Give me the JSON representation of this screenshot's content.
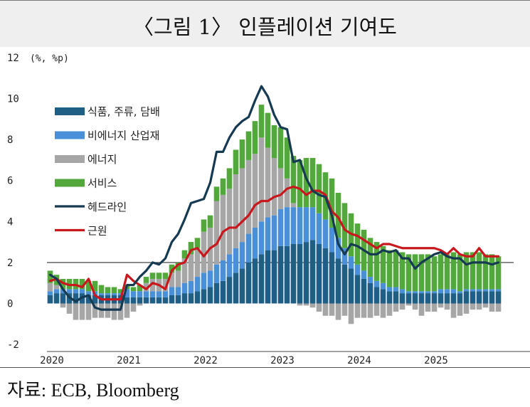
{
  "title": "〈그림 1〉 인플레이션 기여도",
  "source": "자료: ECB, Bloomberg",
  "chart_data": {
    "type": "bar",
    "stacked": true,
    "unit_label": "(%, %p)",
    "ylim": [
      -2,
      12
    ],
    "yticks": [
      "12",
      "10",
      "8",
      "6",
      "4",
      "2",
      "0",
      "-2"
    ],
    "ytick_values": [
      12,
      10,
      8,
      6,
      4,
      2,
      0,
      -2
    ],
    "x_start": "2020-01",
    "x_labels": [
      "2020",
      "2021",
      "2022",
      "2023",
      "2024",
      "2025"
    ],
    "reference_line": 2,
    "legend_position": "top-left",
    "colors": {
      "food": "#1f5f86",
      "core_goods": "#4a90d9",
      "energy": "#a6a6a6",
      "services": "#52a83a",
      "headline": "#163a52",
      "core": "#c8181e"
    },
    "legend": {
      "food": "식품, 주류, 담배",
      "core_goods": "비에너지 산업재",
      "energy": "에너지",
      "services": "서비스",
      "headline": "헤드라인",
      "core": "근원"
    },
    "series": {
      "food": [
        0.4,
        0.5,
        0.5,
        0.5,
        0.5,
        0.5,
        0.4,
        0.4,
        0.4,
        0.4,
        0.4,
        0.4,
        0.3,
        0.3,
        0.3,
        0.3,
        0.3,
        0.3,
        0.3,
        0.4,
        0.4,
        0.5,
        0.5,
        0.6,
        0.7,
        0.8,
        1.0,
        1.1,
        1.3,
        1.5,
        1.7,
        2.0,
        2.2,
        2.4,
        2.6,
        2.6,
        2.8,
        2.8,
        2.9,
        2.9,
        3.0,
        3.1,
        2.9,
        2.7,
        2.5,
        2.2,
        1.9,
        1.7,
        1.4,
        1.2,
        1.0,
        0.8,
        0.7,
        0.6,
        0.6,
        0.5,
        0.5,
        0.5,
        0.5,
        0.5,
        0.5,
        0.5,
        0.5,
        0.5,
        0.5,
        0.6,
        0.6,
        0.6,
        0.6,
        0.6,
        0.6
      ],
      "core_goods": [
        0.2,
        0.2,
        0.2,
        0.2,
        0.2,
        0.2,
        0.2,
        0.2,
        0.1,
        0.1,
        0.1,
        0.1,
        0.4,
        0.3,
        0.3,
        0.3,
        0.3,
        0.3,
        0.3,
        0.4,
        0.4,
        0.5,
        0.6,
        0.7,
        0.8,
        0.8,
        0.9,
        1.0,
        1.1,
        1.2,
        1.3,
        1.4,
        1.5,
        1.6,
        1.6,
        1.7,
        1.8,
        1.9,
        1.8,
        1.8,
        1.7,
        1.6,
        1.5,
        1.4,
        1.2,
        1.0,
        0.8,
        0.6,
        0.5,
        0.4,
        0.3,
        0.3,
        0.3,
        0.2,
        0.2,
        0.2,
        0.1,
        0.1,
        0.1,
        0.1,
        0.1,
        0.2,
        0.2,
        0.2,
        0.1,
        0.1,
        0.1,
        0.1,
        0.1,
        0.1,
        0.1
      ],
      "energy": [
        0.4,
        0.2,
        -0.2,
        -0.5,
        -0.8,
        -0.8,
        -0.8,
        -0.7,
        -0.7,
        -0.7,
        -0.8,
        -0.8,
        -0.7,
        -0.4,
        -0.1,
        0.4,
        0.6,
        0.6,
        0.6,
        0.7,
        0.8,
        1.2,
        1.3,
        1.4,
        2.0,
        2.1,
        3.1,
        3.2,
        3.2,
        3.6,
        3.6,
        3.6,
        3.6,
        4.1,
        3.4,
        2.8,
        2.0,
        1.4,
        0.2,
        -0.1,
        -0.1,
        -0.2,
        -0.4,
        -0.6,
        -0.6,
        -0.8,
        -0.6,
        -1.0,
        -0.7,
        -0.7,
        -0.7,
        -0.6,
        -0.7,
        -0.6,
        -0.4,
        -0.3,
        -0.1,
        -0.3,
        -0.6,
        -0.4,
        -0.4,
        -0.2,
        -0.3,
        -0.7,
        -0.6,
        -0.5,
        -0.3,
        -0.3,
        -0.2,
        -0.4,
        -0.4
      ],
      "services": [
        0.6,
        0.5,
        0.5,
        0.5,
        0.5,
        0.5,
        0.5,
        0.5,
        0.4,
        0.3,
        0.3,
        0.2,
        0.2,
        0.2,
        0.3,
        0.3,
        0.3,
        0.3,
        0.3,
        0.4,
        0.4,
        0.4,
        0.6,
        0.5,
        0.6,
        0.6,
        0.7,
        0.8,
        1.0,
        1.2,
        1.4,
        1.4,
        1.6,
        1.6,
        1.7,
        1.6,
        2.0,
        2.0,
        2.3,
        2.3,
        2.4,
        2.4,
        2.4,
        2.3,
        2.4,
        2.2,
        2.2,
        2.1,
        2.0,
        2.0,
        1.9,
        1.9,
        1.8,
        1.8,
        1.8,
        1.8,
        1.8,
        1.8,
        1.8,
        1.8,
        1.7,
        1.7,
        1.7,
        1.8,
        1.8,
        1.8,
        1.8,
        1.8,
        1.7,
        1.7,
        1.6
      ],
      "headline": [
        1.4,
        1.2,
        0.7,
        0.3,
        0.1,
        0.3,
        0.4,
        -0.2,
        -0.3,
        -0.3,
        -0.3,
        -0.3,
        0.9,
        0.9,
        1.3,
        1.6,
        2.0,
        1.9,
        2.2,
        3.0,
        3.4,
        4.1,
        4.9,
        5.0,
        5.1,
        5.9,
        7.4,
        7.4,
        8.1,
        8.6,
        8.9,
        9.1,
        9.9,
        10.6,
        10.1,
        9.2,
        8.6,
        8.5,
        6.9,
        7.0,
        6.1,
        5.5,
        5.3,
        5.2,
        4.3,
        2.9,
        2.4,
        2.9,
        2.8,
        2.6,
        2.4,
        2.4,
        2.6,
        2.5,
        2.6,
        2.2,
        2.2,
        1.7,
        2.0,
        2.2,
        2.4,
        2.5,
        2.3,
        2.2,
        2.2,
        1.9,
        2.0,
        2.0,
        2.0,
        1.9,
        2.0
      ],
      "core": [
        1.1,
        1.2,
        1.0,
        0.9,
        0.9,
        0.8,
        1.2,
        0.4,
        0.2,
        0.2,
        0.2,
        0.2,
        1.4,
        1.1,
        0.9,
        0.7,
        1.0,
        0.9,
        0.7,
        1.6,
        1.9,
        2.0,
        2.6,
        2.7,
        2.3,
        2.7,
        2.9,
        3.5,
        3.7,
        3.7,
        4.0,
        4.3,
        4.8,
        5.0,
        5.0,
        5.2,
        5.3,
        5.6,
        5.7,
        5.6,
        5.3,
        5.5,
        5.5,
        5.3,
        4.5,
        4.2,
        3.6,
        3.4,
        3.3,
        3.1,
        2.9,
        2.7,
        2.9,
        2.9,
        2.8,
        2.7,
        2.7,
        2.7,
        2.7,
        2.7,
        2.7,
        2.6,
        2.4,
        2.7,
        2.4,
        2.3,
        2.3,
        2.7,
        2.3,
        2.3,
        2.3
      ]
    }
  }
}
